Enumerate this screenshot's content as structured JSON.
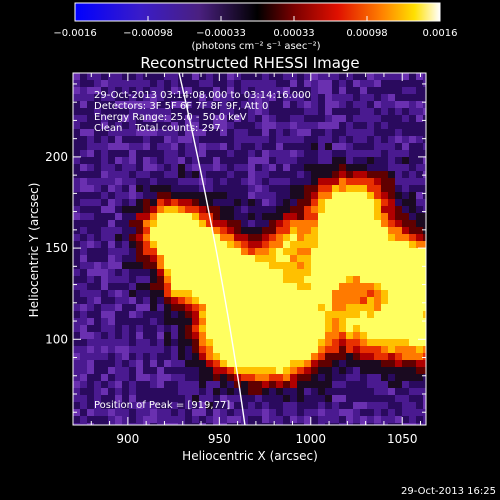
{
  "colorbar": {
    "ticks": [
      "−0.0016",
      "−0.00098",
      "−0.00033",
      "0.00033",
      "0.00098",
      "0.0016"
    ],
    "units_label": "(photons cm⁻² s⁻¹ asec⁻²)",
    "range": [
      -0.0016,
      0.0016
    ],
    "colormap": "blue-purple-black-red-orange-yellow-white"
  },
  "chart_data": {
    "type": "heatmap",
    "title": "Reconstructed RHESSI Image",
    "xlabel": "Heliocentric X (arcsec)",
    "ylabel": "Heliocentric Y (arcsec)",
    "xlim": [
      870,
      1063
    ],
    "ylim": [
      53,
      246
    ],
    "xticks": [
      900,
      950,
      1000,
      1050
    ],
    "yticks": [
      100,
      150,
      200
    ],
    "annotations": [
      "29-Oct-2013 03:14:08.000 to 03:14:16.000",
      "Detectors: 3F 5F 6F 7F 8F 9F, Att 0",
      "Energy Range: 25.0 - 50.0 keV",
      "Clean    Total counts: 297.",
      "Position of Peak = [919,77]"
    ],
    "peak": {
      "x": 919,
      "y": 77
    },
    "limb": {
      "x_at_top": 928,
      "x_at_bottom": 964
    }
  },
  "footer": {
    "timestamp": "29-Oct-2013 16:25"
  }
}
